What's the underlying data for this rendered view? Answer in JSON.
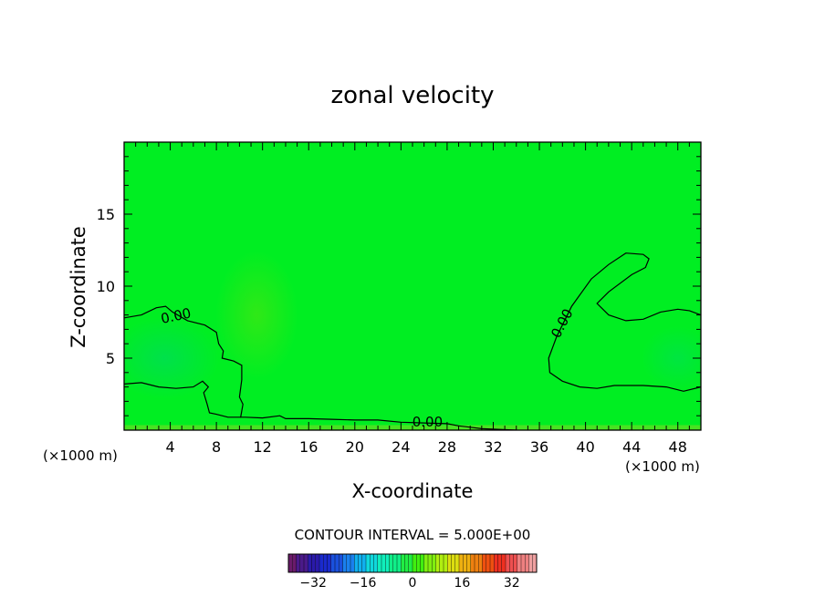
{
  "chart_data": {
    "type": "heatmap",
    "title": "zonal velocity",
    "xlabel": "X-coordinate",
    "ylabel": "Z-coordinate",
    "x_unit_label": "(×1000 m)",
    "x_unit_label_right": "(×1000 m)",
    "xlim": [
      0,
      50
    ],
    "ylim": [
      0,
      20
    ],
    "x_ticks": [
      4,
      8,
      12,
      16,
      20,
      24,
      28,
      32,
      36,
      40,
      44,
      48
    ],
    "x_tick_labels": [
      "4",
      "8",
      "12",
      "16",
      "20",
      "24",
      "28",
      "32",
      "36",
      "40",
      "44",
      "48"
    ],
    "y_ticks": [
      5,
      10,
      15
    ],
    "y_tick_labels": [
      "5",
      "10",
      "15"
    ],
    "background_value": 0,
    "field_color": "#00ee22",
    "contours": [
      {
        "name": "left zero contour",
        "value_label": "0.00",
        "points": [
          [
            0,
            7.8
          ],
          [
            1.5,
            8.0
          ],
          [
            2.8,
            8.5
          ],
          [
            3.6,
            8.6
          ],
          [
            4.2,
            8.2
          ],
          [
            5.5,
            7.6
          ],
          [
            7,
            7.3
          ],
          [
            8,
            6.8
          ],
          [
            8.2,
            6.0
          ],
          [
            8.6,
            5.5
          ],
          [
            8.5,
            5.0
          ],
          [
            9.5,
            4.8
          ],
          [
            10.2,
            4.5
          ],
          [
            10.2,
            3.5
          ],
          [
            10.0,
            2.3
          ],
          [
            10.3,
            1.8
          ],
          [
            10.1,
            0.9
          ],
          [
            10.5,
            0.9
          ],
          [
            12,
            0.85
          ],
          [
            13.5,
            1.0
          ],
          [
            14,
            0.8
          ],
          [
            16,
            0.8
          ],
          [
            18,
            0.75
          ],
          [
            20,
            0.7
          ],
          [
            22,
            0.7
          ],
          [
            24,
            0.55
          ],
          [
            26,
            0.5
          ],
          [
            28,
            0.45
          ],
          [
            29,
            0.3
          ],
          [
            30,
            0.2
          ],
          [
            31,
            0.1
          ],
          [
            34,
            0
          ]
        ],
        "label_at": [
          4.5,
          7.9,
          -12
        ]
      },
      {
        "name": "left lower contour",
        "value_label": "",
        "points": [
          [
            0,
            3.2
          ],
          [
            1.5,
            3.3
          ],
          [
            3,
            3.0
          ],
          [
            4.5,
            2.9
          ],
          [
            6,
            3.0
          ],
          [
            6.8,
            3.4
          ],
          [
            7.3,
            3.0
          ],
          [
            6.9,
            2.6
          ],
          [
            7.2,
            1.8
          ],
          [
            7.4,
            1.2
          ],
          [
            8,
            1.1
          ],
          [
            9,
            0.9
          ],
          [
            10.1,
            0.9
          ]
        ]
      },
      {
        "name": "right zero contour",
        "value_label": "0.00",
        "points": [
          [
            50,
            8.0
          ],
          [
            49,
            8.3
          ],
          [
            48,
            8.4
          ],
          [
            46.5,
            8.2
          ],
          [
            45,
            7.7
          ],
          [
            43.5,
            7.6
          ],
          [
            42,
            8.0
          ],
          [
            41,
            8.8
          ],
          [
            42,
            9.6
          ],
          [
            44,
            10.8
          ],
          [
            45.2,
            11.3
          ],
          [
            45.5,
            11.9
          ],
          [
            45,
            12.2
          ],
          [
            43.5,
            12.3
          ],
          [
            42,
            11.5
          ],
          [
            40.5,
            10.5
          ],
          [
            38.8,
            8.6
          ],
          [
            37.5,
            6.5
          ],
          [
            36.8,
            5.0
          ],
          [
            36.9,
            4.0
          ],
          [
            38,
            3.4
          ],
          [
            39.5,
            3.0
          ],
          [
            41,
            2.9
          ],
          [
            42.5,
            3.1
          ],
          [
            45,
            3.1
          ],
          [
            47,
            3.0
          ],
          [
            48.5,
            2.7
          ],
          [
            50,
            3.0
          ]
        ],
        "label_at": [
          38,
          7.4,
          -62
        ]
      }
    ],
    "colorbar": {
      "title": "CONTOUR INTERVAL = 5.000E+00",
      "ticks": [
        -32,
        -16,
        0,
        16,
        32
      ],
      "tick_labels": [
        "−32",
        "−16",
        "0",
        "16",
        "32"
      ],
      "range": [
        -40,
        40
      ],
      "colors": [
        "#6a1b6a",
        "#4a1a8a",
        "#2a1aaa",
        "#1a2acc",
        "#1a50dd",
        "#1a80ee",
        "#10b0ee",
        "#10d8dd",
        "#10eebb",
        "#10ee88",
        "#20ee44",
        "#40ee10",
        "#80ee10",
        "#b0ee10",
        "#dddd10",
        "#eeb010",
        "#ee8010",
        "#ee5010",
        "#ee3020",
        "#ee5050",
        "#ee8080",
        "#eea0a0"
      ]
    }
  }
}
